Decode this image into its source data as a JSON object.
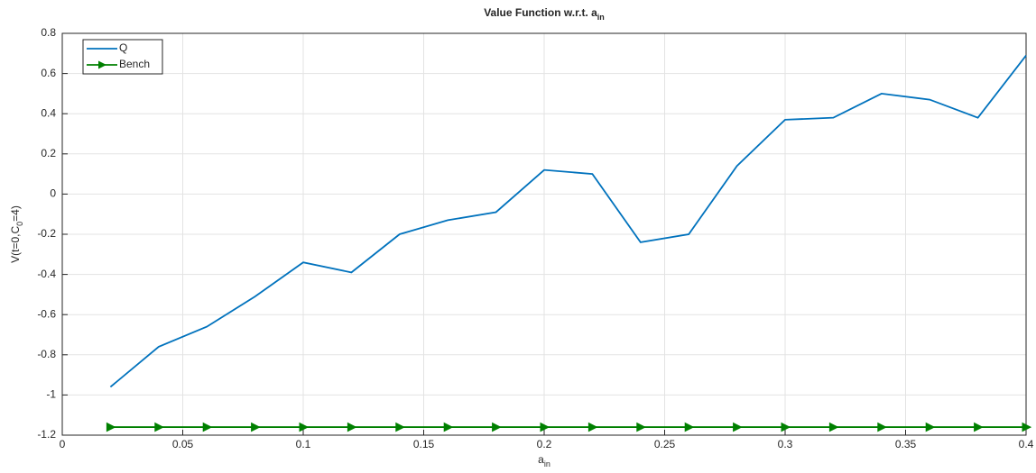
{
  "chart_data": {
    "type": "line",
    "title_parts": [
      "Value Function w.r.t. a",
      "in"
    ],
    "xlabel_parts": [
      "a",
      "in"
    ],
    "ylabel_parts": [
      "V(t=0,C",
      "0",
      "=4)"
    ],
    "x": [
      0.02,
      0.04,
      0.06,
      0.08,
      0.1,
      0.12,
      0.14,
      0.16,
      0.18,
      0.2,
      0.22,
      0.24,
      0.26,
      0.28,
      0.3,
      0.32,
      0.34,
      0.36,
      0.38,
      0.4
    ],
    "series": [
      {
        "name": "Q",
        "color": "#0072bd",
        "marker": "none",
        "values": [
          -0.96,
          -0.76,
          -0.66,
          -0.51,
          -0.34,
          -0.39,
          -0.2,
          -0.13,
          -0.09,
          0.12,
          0.1,
          -0.24,
          -0.2,
          0.14,
          0.37,
          0.38,
          0.5,
          0.47,
          0.38,
          0.69
        ]
      },
      {
        "name": "Bench",
        "color": "#008000",
        "marker": "triangle-right",
        "values": [
          -1.16,
          -1.16,
          -1.16,
          -1.16,
          -1.16,
          -1.16,
          -1.16,
          -1.16,
          -1.16,
          -1.16,
          -1.16,
          -1.16,
          -1.16,
          -1.16,
          -1.16,
          -1.16,
          -1.16,
          -1.16,
          -1.16,
          -1.16
        ]
      }
    ],
    "xlim": [
      0,
      0.4
    ],
    "xticks": [
      0,
      0.05,
      0.1,
      0.15,
      0.2,
      0.25,
      0.3,
      0.35,
      0.4
    ],
    "ylim": [
      -1.2,
      0.8
    ],
    "yticks": [
      -1.2,
      -1,
      -0.8,
      -0.6,
      -0.4,
      -0.2,
      0,
      0.2,
      0.4,
      0.6,
      0.8
    ],
    "grid": true,
    "legend": "northwest"
  }
}
